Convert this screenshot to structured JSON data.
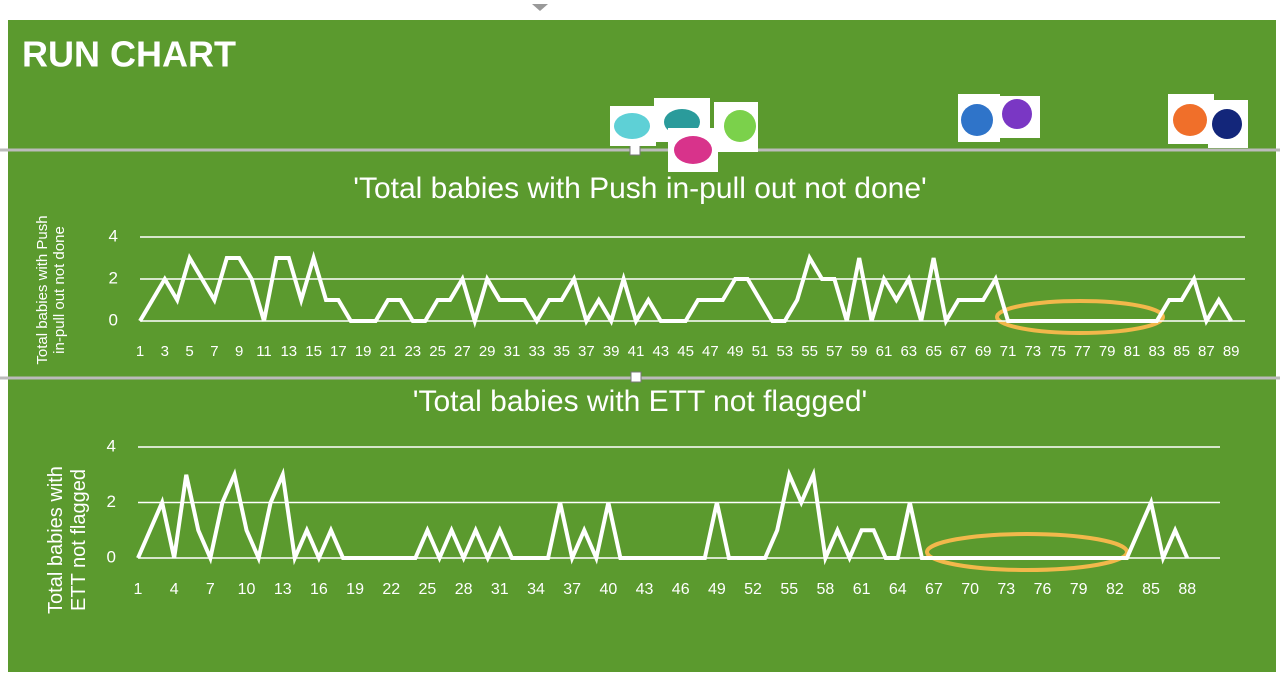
{
  "header": {
    "title": "RUN CHART"
  },
  "chart_data": [
    {
      "type": "line",
      "title": "'Total babies with Push in-pull out not done'",
      "y_label": "Total babies with Push in-pull out not done",
      "categories": [
        1,
        null,
        3,
        null,
        5,
        null,
        7,
        null,
        9,
        null,
        11,
        null,
        13,
        null,
        15,
        null,
        17,
        null,
        19,
        null,
        21,
        null,
        23,
        null,
        25,
        null,
        27,
        null,
        29,
        null,
        31,
        null,
        33,
        null,
        35,
        null,
        37,
        null,
        39,
        null,
        41,
        null,
        43,
        null,
        45,
        null,
        47,
        null,
        49,
        null,
        51,
        null,
        53,
        null,
        55,
        null,
        57,
        null,
        59,
        null,
        61,
        null,
        63,
        null,
        65,
        null,
        67,
        null,
        69,
        null,
        71,
        null,
        73,
        null,
        75,
        null,
        77,
        null,
        79,
        null,
        81,
        null,
        83,
        null,
        85,
        null,
        87,
        null,
        89
      ],
      "series": [
        {
          "name": "Total babies with Push in-pull out not done",
          "color": "#ffffff",
          "values": [
            0,
            1,
            2,
            1,
            3,
            2,
            1,
            3,
            3,
            2,
            0,
            3,
            3,
            1,
            3,
            1,
            1,
            0,
            0,
            0,
            1,
            1,
            0,
            0,
            1,
            1,
            2,
            0,
            2,
            1,
            1,
            1,
            0,
            1,
            1,
            2,
            0,
            1,
            0,
            2,
            0,
            1,
            0,
            0,
            0,
            1,
            1,
            1,
            2,
            2,
            1,
            0,
            0,
            1,
            3,
            2,
            2,
            0,
            3,
            0,
            2,
            1,
            2,
            0,
            3,
            0,
            1,
            1,
            1,
            2,
            0,
            0,
            0,
            0,
            0,
            0,
            0,
            0,
            0,
            0,
            0,
            0,
            0,
            1,
            1,
            2,
            0,
            1,
            0
          ]
        }
      ],
      "ylim": [
        0,
        4
      ],
      "yticks": [
        0,
        2,
        4
      ],
      "grid": true
    },
    {
      "type": "line",
      "title": "'Total babies with ETT not flagged'",
      "y_label": "Total babies with ETT not flagged",
      "categories": [
        1,
        null,
        null,
        4,
        null,
        null,
        7,
        null,
        null,
        10,
        null,
        null,
        13,
        null,
        null,
        16,
        null,
        null,
        19,
        null,
        null,
        22,
        null,
        null,
        25,
        null,
        null,
        28,
        null,
        null,
        31,
        null,
        null,
        34,
        null,
        null,
        37,
        null,
        null,
        40,
        null,
        null,
        43,
        null,
        null,
        46,
        null,
        null,
        49,
        null,
        null,
        52,
        null,
        null,
        55,
        null,
        null,
        58,
        null,
        null,
        61,
        null,
        null,
        64,
        null,
        null,
        67,
        null,
        null,
        70,
        null,
        null,
        73,
        null,
        null,
        76,
        null,
        null,
        79,
        null,
        null,
        82,
        null,
        null,
        85,
        null,
        null,
        88
      ],
      "series": [
        {
          "name": "Total babies with ETT not flagged",
          "color": "#ffffff",
          "values": [
            0,
            1,
            2,
            0,
            3,
            1,
            0,
            2,
            3,
            1,
            0,
            2,
            3,
            0,
            1,
            0,
            1,
            0,
            0,
            0,
            0,
            0,
            0,
            0,
            1,
            0,
            1,
            0,
            1,
            0,
            1,
            0,
            0,
            0,
            0,
            2,
            0,
            1,
            0,
            2,
            0,
            0,
            0,
            0,
            0,
            0,
            0,
            0,
            2,
            0,
            0,
            0,
            0,
            1,
            3,
            2,
            3,
            0,
            1,
            0,
            1,
            1,
            0,
            0,
            2,
            0,
            0,
            0,
            0,
            0,
            0,
            0,
            0,
            0,
            0,
            0,
            0,
            0,
            0,
            0,
            0,
            0,
            0,
            1,
            2,
            0,
            1,
            0
          ]
        }
      ],
      "ylim": [
        0,
        4
      ],
      "yticks": [
        0,
        2,
        4
      ],
      "grid": true
    }
  ]
}
